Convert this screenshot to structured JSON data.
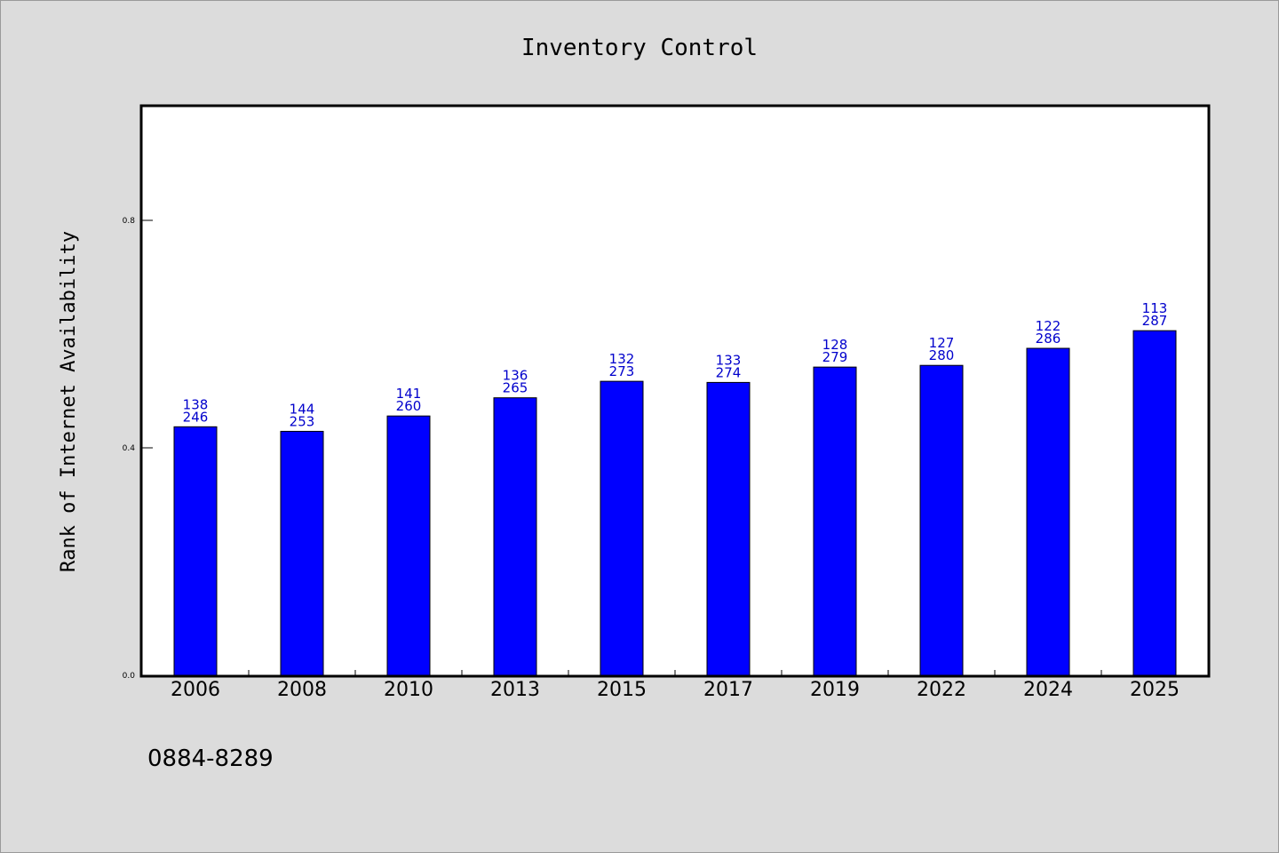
{
  "chart_data": {
    "type": "bar",
    "title": "Inventory Control",
    "ylabel": "Rank of Internet Availability",
    "xlabel": "",
    "categories": [
      "2006",
      "2008",
      "2010",
      "2013",
      "2015",
      "2017",
      "2019",
      "2022",
      "2024",
      "2025"
    ],
    "values": [
      0.437,
      0.429,
      0.456,
      0.488,
      0.517,
      0.515,
      0.542,
      0.545,
      0.575,
      0.606
    ],
    "labels_top": [
      "138",
      "144",
      "141",
      "136",
      "132",
      "133",
      "128",
      "127",
      "122",
      "113"
    ],
    "labels_bottom": [
      "246",
      "253",
      "260",
      "265",
      "273",
      "274",
      "279",
      "280",
      "286",
      "287"
    ],
    "ylim": [
      0.0,
      1.0
    ],
    "yticks": [
      0.0,
      0.4,
      0.8
    ],
    "ytick_labels": [
      "0.0",
      "0.4",
      "0.8"
    ],
    "grid": false,
    "legend": "none",
    "bar_color": "#0000ff",
    "label_color": "#0000cc",
    "footnote": "0884-8289"
  }
}
